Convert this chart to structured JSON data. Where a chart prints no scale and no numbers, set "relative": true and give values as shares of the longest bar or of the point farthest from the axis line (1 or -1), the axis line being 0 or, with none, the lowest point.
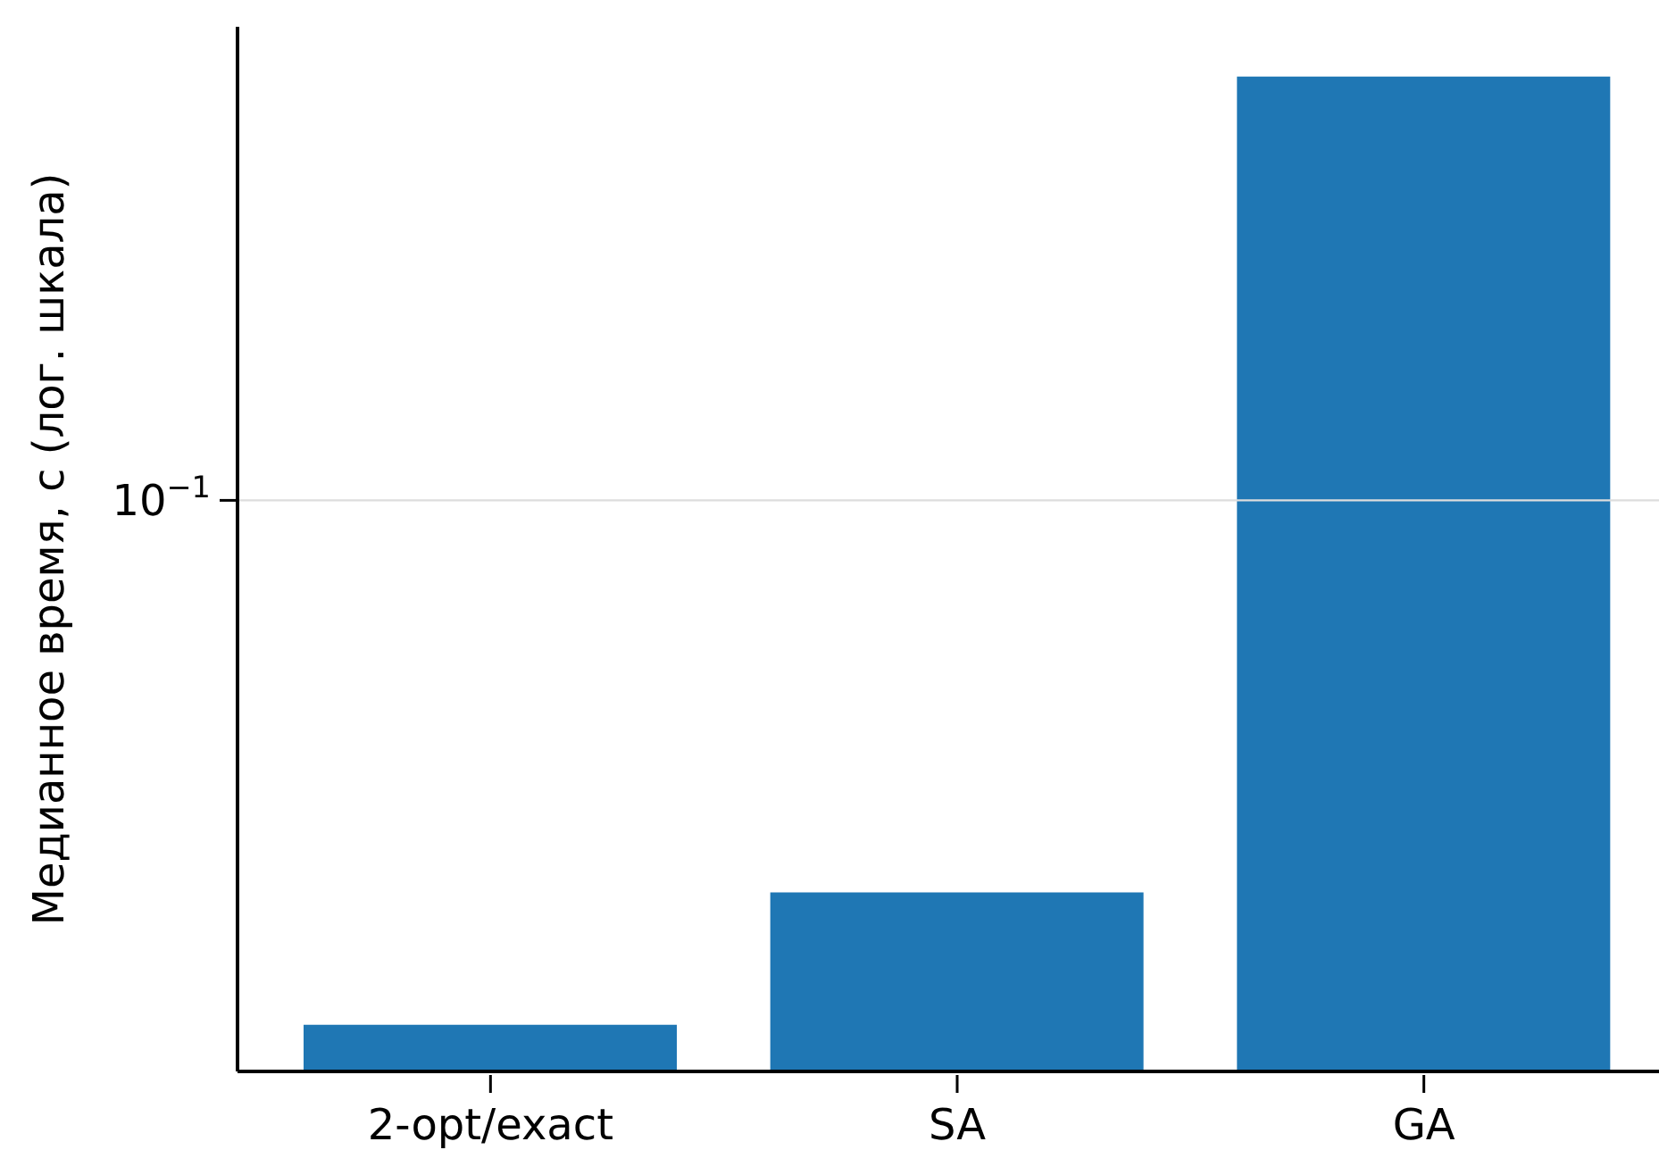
{
  "chart_data": {
    "type": "bar",
    "ylabel": "Медианное время, с (лог. шкала)",
    "categories": [
      "2-opt/exact",
      "SA",
      "GA"
    ],
    "values": [
      0.047,
      0.18,
      1
    ],
    "color": "#1f77b4",
    "relative": true,
    "ref_lines": [
      {
        "axis": "y",
        "value": 0.574,
        "label": "10$^{−1}$",
        "color": "#dddddd"
      }
    ]
  }
}
